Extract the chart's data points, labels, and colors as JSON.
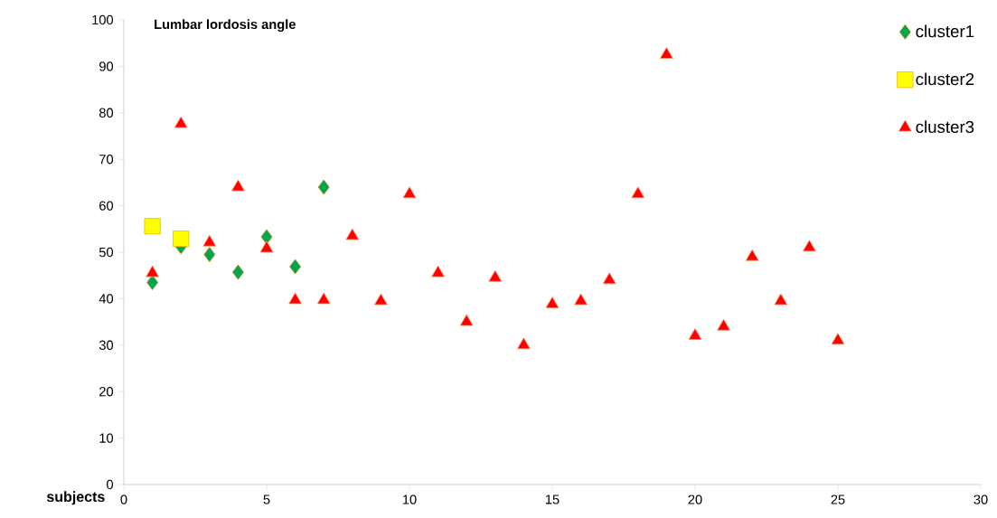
{
  "chart_data": {
    "type": "scatter",
    "title": "Lumbar lordosis angle",
    "xlabel": "subjects",
    "xlim": [
      0,
      30
    ],
    "xticks": [
      0,
      5,
      10,
      15,
      20,
      25,
      30
    ],
    "ylim": [
      0,
      100
    ],
    "yticks": [
      0,
      10,
      20,
      30,
      40,
      50,
      60,
      70,
      80,
      90,
      100
    ],
    "grid": false,
    "legend": "top right",
    "series": [
      {
        "name": "cluster1",
        "color": "#00a650",
        "marker": "diamond",
        "x": [
          1,
          2,
          3,
          4,
          5,
          6,
          7
        ],
        "values": [
          43.5,
          51.2,
          49.5,
          45.7,
          53.3,
          46.9,
          64.0
        ]
      },
      {
        "name": "cluster2",
        "color": "#ffff00",
        "marker": "square",
        "x": [
          1,
          2
        ],
        "values": [
          55.6,
          52.9
        ]
      },
      {
        "name": "cluster3",
        "color": "#ff0000",
        "marker": "triangle",
        "x": [
          1,
          2,
          3,
          4,
          5,
          6,
          7,
          8,
          9,
          10,
          11,
          12,
          13,
          14,
          15,
          16,
          17,
          18,
          19,
          20,
          21,
          22,
          23,
          24,
          25
        ],
        "values": [
          45.5,
          77.6,
          52.1,
          64.0,
          50.8,
          39.7,
          39.7,
          53.5,
          39.5,
          62.5,
          45.5,
          35.0,
          44.5,
          30.0,
          38.8,
          39.5,
          44.0,
          62.5,
          92.5,
          32.0,
          34.0,
          49.0,
          39.5,
          51.0,
          31.0
        ]
      }
    ]
  }
}
